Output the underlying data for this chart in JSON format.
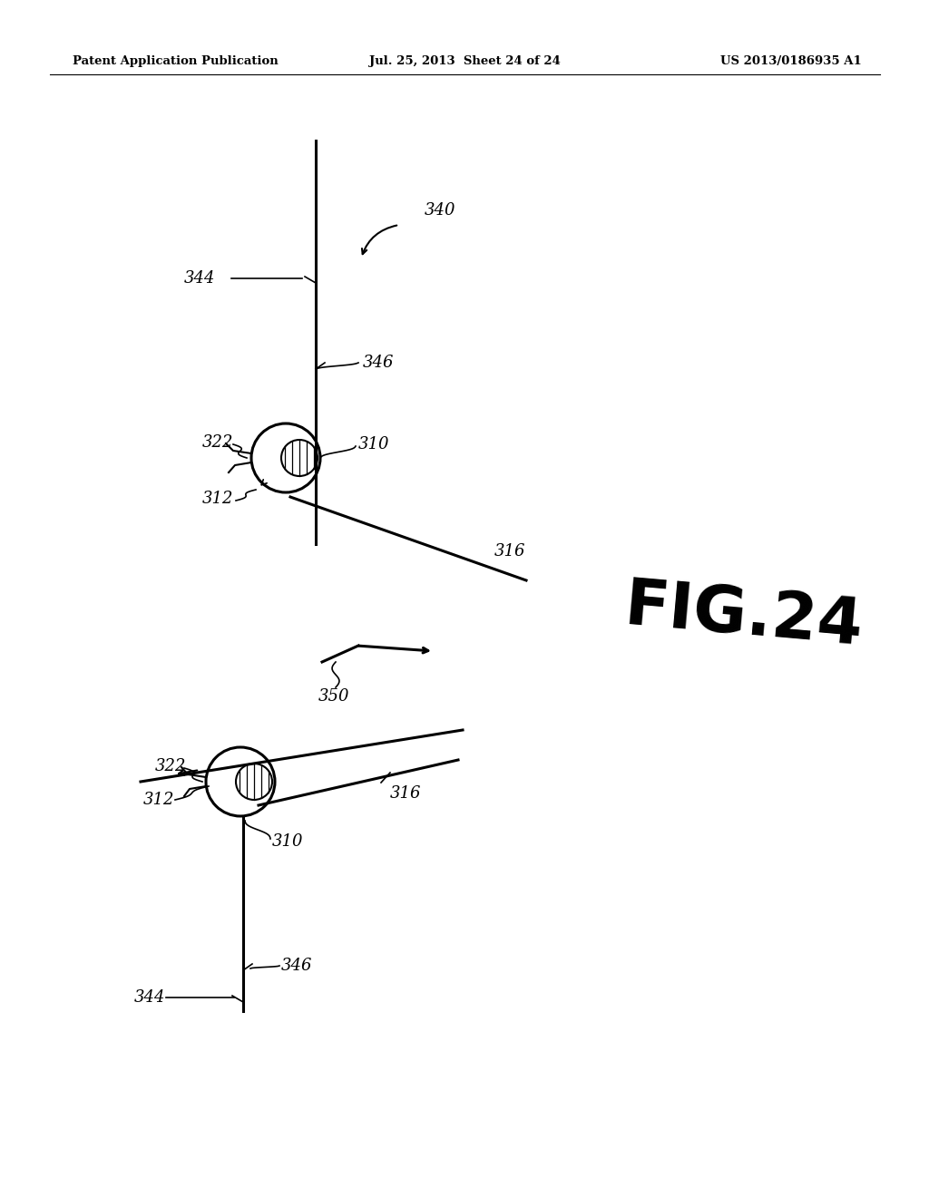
{
  "bg_color": "#ffffff",
  "header_left": "Patent Application Publication",
  "header_mid": "Jul. 25, 2013  Sheet 24 of 24",
  "header_right": "US 2013/0186935 A1",
  "fig_label": "FIG.24"
}
